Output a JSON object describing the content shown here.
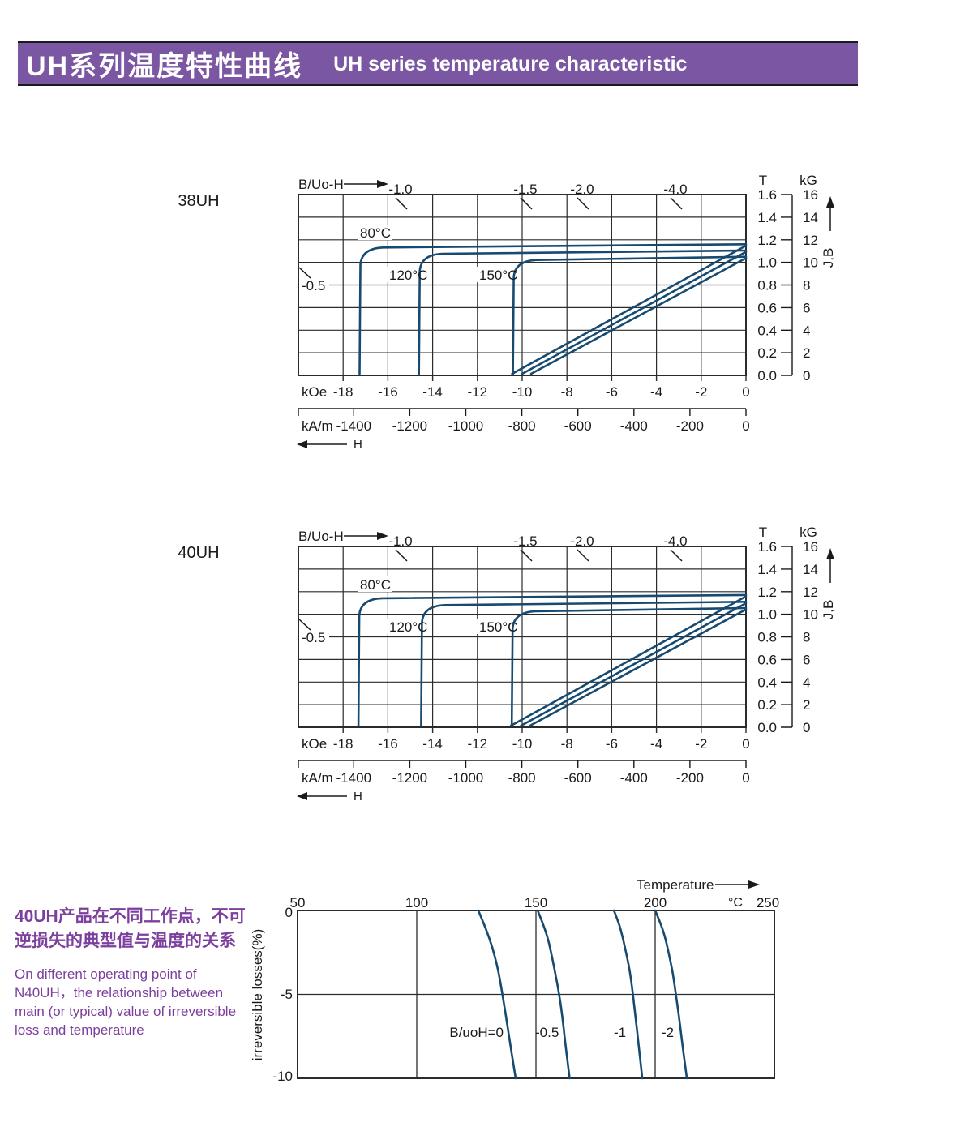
{
  "header": {
    "title_zh": "UH系列温度特性曲线",
    "title_en": "UH series temperature characteristic",
    "bg": "#7a56a3",
    "text_color": "#ffffff"
  },
  "note": {
    "zh_lines": [
      "40UH产品在不同工作点，不可",
      "逆损失的典型值与温度的关系"
    ],
    "en_lines": [
      "On different operating point of",
      "N40UH，the relationship between",
      "main (or typical) value of irreversible",
      "loss and temperature"
    ],
    "color": "#7d3f9d"
  },
  "colors": {
    "curve": "#174a70",
    "grid": "#2b2b2b",
    "text": "#1a1a1a"
  },
  "demag_common": {
    "b_uoh_label": "B/Uo-H",
    "h_label": "H",
    "koe_label": "kOe",
    "kam_label": "kA/m",
    "t_label": "T",
    "kg_label": "kG",
    "jb_label": "J,B",
    "koe_ticks": [
      "-18",
      "-16",
      "-14",
      "-12",
      "-10",
      "-8",
      "-6",
      "-4",
      "-2",
      "0"
    ],
    "kam_ticks": [
      "-1400",
      "-1200",
      "-1000",
      "-800",
      "-600",
      "-400",
      "-200",
      "0"
    ],
    "t_ticks": [
      "1.6",
      "1.4",
      "1.2",
      "1.0",
      "0.8",
      "0.6",
      "0.4",
      "0.2",
      "0.0"
    ],
    "kg_ticks": [
      "16",
      "14",
      "12",
      "10",
      "8",
      "6",
      "4",
      "2",
      "0"
    ],
    "top_load_labels": [
      "-1.0",
      "-1.5",
      "-2.0",
      "-4.0"
    ],
    "side_load_label": "-0.5",
    "temp_labels": [
      "80°C",
      "120°C",
      "150°C"
    ]
  },
  "chart_data": [
    {
      "id": "demag-38uh",
      "type": "line",
      "title": "38UH",
      "x_axis": {
        "label_primary": "kOe",
        "ticks_primary": [
          "-18",
          "-16",
          "-14",
          "-12",
          "-10",
          "-8",
          "-6",
          "-4",
          "-2",
          "0"
        ],
        "label_secondary": "kA/m",
        "ticks_secondary": [
          "-1400",
          "-1200",
          "-1000",
          "-800",
          "-600",
          "-400",
          "-200",
          "0"
        ],
        "range_kOe": [
          -20,
          0
        ],
        "arrow_label": "H"
      },
      "y_axis": {
        "label_primary": "T",
        "ticks_primary": [
          "1.6",
          "1.4",
          "1.2",
          "1.0",
          "0.8",
          "0.6",
          "0.4",
          "0.2",
          "0.0"
        ],
        "label_secondary": "kG",
        "ticks_secondary": [
          "16",
          "14",
          "12",
          "10",
          "8",
          "6",
          "4",
          "2",
          "0"
        ],
        "range_T": [
          0,
          1.6
        ],
        "arrow_label": "J,B"
      },
      "load_line_labels_top": [
        "-1.0",
        "-1.5",
        "-2.0",
        "-4.0"
      ],
      "load_line_label_left": "-0.5",
      "temp_curve_labels": [
        "80°C",
        "120°C",
        "150°C"
      ],
      "series": [
        {
          "name": "J 80°C",
          "kind": "J",
          "flat_T": 1.16,
          "knee_kOe": -17.3
        },
        {
          "name": "J 120°C",
          "kind": "J",
          "flat_T": 1.105,
          "knee_kOe": -14.65
        },
        {
          "name": "J 150°C",
          "kind": "J",
          "flat_T": 1.05,
          "knee_kOe": -10.45
        },
        {
          "name": "B 80°C",
          "kind": "B",
          "points_kOe_T": [
            [
              0,
              1.155
            ],
            [
              -10.45,
              0
            ]
          ]
        },
        {
          "name": "B 120°C",
          "kind": "B",
          "points_kOe_T": [
            [
              0,
              1.1
            ],
            [
              -10.0,
              0
            ]
          ]
        },
        {
          "name": "B 150°C",
          "kind": "B",
          "points_kOe_T": [
            [
              0,
              1.045
            ],
            [
              -9.6,
              0
            ]
          ]
        }
      ]
    },
    {
      "id": "demag-40uh",
      "type": "line",
      "title": "40UH",
      "x_axis": {
        "label_primary": "kOe",
        "ticks_primary": [
          "-18",
          "-16",
          "-14",
          "-12",
          "-10",
          "-8",
          "-6",
          "-4",
          "-2",
          "0"
        ],
        "label_secondary": "kA/m",
        "ticks_secondary": [
          "-1400",
          "-1200",
          "-1000",
          "-800",
          "-600",
          "-400",
          "-200",
          "0"
        ],
        "range_kOe": [
          -20,
          0
        ],
        "arrow_label": "H"
      },
      "y_axis": {
        "label_primary": "T",
        "ticks_primary": [
          "1.6",
          "1.4",
          "1.2",
          "1.0",
          "0.8",
          "0.6",
          "0.4",
          "0.2",
          "0.0"
        ],
        "label_secondary": "kG",
        "ticks_secondary": [
          "16",
          "14",
          "12",
          "10",
          "8",
          "6",
          "4",
          "2",
          "0"
        ],
        "range_T": [
          0,
          1.6
        ],
        "arrow_label": "J,B"
      },
      "load_line_labels_top": [
        "-1.0",
        "-1.5",
        "-2.0",
        "-4.0"
      ],
      "load_line_label_left": "-0.5",
      "temp_curve_labels": [
        "80°C",
        "120°C",
        "150°C"
      ],
      "series": [
        {
          "name": "J 80°C",
          "kind": "J",
          "flat_T": 1.17,
          "knee_kOe": -17.35
        },
        {
          "name": "J 120°C",
          "kind": "J",
          "flat_T": 1.11,
          "knee_kOe": -14.55
        },
        {
          "name": "J 150°C",
          "kind": "J",
          "flat_T": 1.055,
          "knee_kOe": -10.5
        },
        {
          "name": "B 80°C",
          "kind": "B",
          "points_kOe_T": [
            [
              0,
              1.165
            ],
            [
              -10.5,
              0
            ]
          ]
        },
        {
          "name": "B 120°C",
          "kind": "B",
          "points_kOe_T": [
            [
              0,
              1.105
            ],
            [
              -10.05,
              0
            ]
          ]
        },
        {
          "name": "B 150°C",
          "kind": "B",
          "points_kOe_T": [
            [
              0,
              1.05
            ],
            [
              -9.65,
              0
            ]
          ]
        }
      ]
    },
    {
      "id": "irreversible-loss",
      "type": "line",
      "x_axis": {
        "label": "Temperature",
        "unit": "°C",
        "ticks": [
          "50",
          "100",
          "150",
          "200",
          "250"
        ],
        "range": [
          50,
          250
        ]
      },
      "y_axis": {
        "label": "irreversible  losses(%)",
        "ticks": [
          "0",
          "-5",
          "-10"
        ],
        "range": [
          -10,
          0
        ],
        "grid_at": -5
      },
      "series": [
        {
          "name": "B/uoH=0",
          "points_C_pct": [
            [
              125.8,
              0
            ],
            [
              128.2,
              -0.8
            ],
            [
              130.6,
              -1.7
            ],
            [
              132.7,
              -2.7
            ],
            [
              134.4,
              -3.7
            ],
            [
              135.7,
              -4.8
            ],
            [
              137.1,
              -6.0
            ],
            [
              138.8,
              -7.6
            ],
            [
              141.5,
              -10
            ]
          ]
        },
        {
          "name": "-0.5",
          "points_C_pct": [
            [
              150.7,
              0
            ],
            [
              153.0,
              -0.8
            ],
            [
              155.1,
              -1.7
            ],
            [
              156.8,
              -2.8
            ],
            [
              158.3,
              -3.9
            ],
            [
              159.5,
              -4.8
            ],
            [
              160.9,
              -6.1
            ],
            [
              162.2,
              -7.8
            ],
            [
              164.1,
              -10
            ]
          ]
        },
        {
          "name": "-1",
          "points_C_pct": [
            [
              182.7,
              0
            ],
            [
              184.7,
              -0.7
            ],
            [
              186.4,
              -1.6
            ],
            [
              188.1,
              -2.7
            ],
            [
              189.5,
              -3.7
            ],
            [
              190.5,
              -4.8
            ],
            [
              191.8,
              -6.4
            ],
            [
              193.2,
              -8.2
            ],
            [
              194.6,
              -10
            ]
          ]
        },
        {
          "name": "-2",
          "points_C_pct": [
            [
              200.0,
              0
            ],
            [
              202.4,
              -0.8
            ],
            [
              204.4,
              -1.7
            ],
            [
              206.1,
              -2.8
            ],
            [
              207.5,
              -3.8
            ],
            [
              208.5,
              -4.8
            ],
            [
              209.9,
              -6.2
            ],
            [
              211.6,
              -8.2
            ],
            [
              213.3,
              -10
            ]
          ]
        }
      ]
    }
  ]
}
